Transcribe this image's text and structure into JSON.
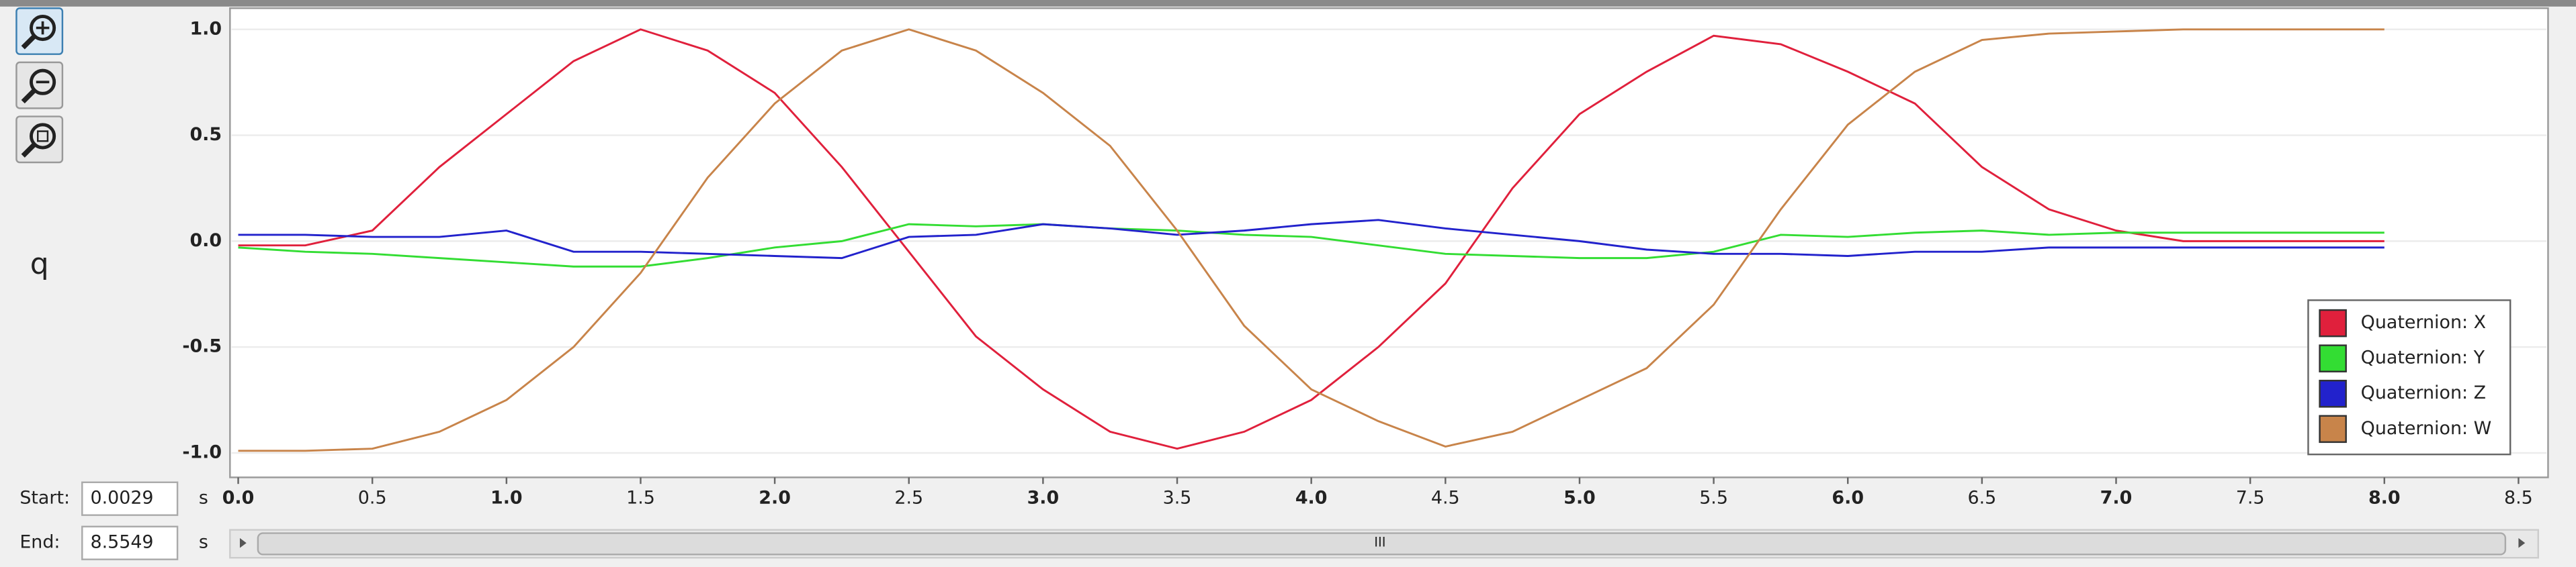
{
  "chart_data": {
    "type": "line",
    "y_label": "q",
    "x": [
      0,
      0.25,
      0.5,
      0.75,
      1,
      1.25,
      1.5,
      1.75,
      2,
      2.25,
      2.5,
      2.75,
      3,
      3.25,
      3.5,
      3.75,
      4,
      4.25,
      4.5,
      4.75,
      5,
      5.25,
      5.5,
      5.75,
      6,
      6.25,
      6.5,
      6.75,
      7,
      7.25,
      7.5,
      7.75,
      8
    ],
    "series": [
      {
        "name": "Quaternion: X",
        "color": "#e0203c",
        "values": [
          -0.02,
          -0.02,
          0.05,
          0.35,
          0.6,
          0.85,
          1.0,
          0.9,
          0.7,
          0.35,
          -0.05,
          -0.45,
          -0.7,
          -0.9,
          -0.98,
          -0.9,
          -0.75,
          -0.5,
          -0.2,
          0.25,
          0.6,
          0.8,
          0.97,
          0.93,
          0.8,
          0.65,
          0.35,
          0.15,
          0.05,
          0.0,
          0.0,
          0.0,
          0.0
        ]
      },
      {
        "name": "Quaternion: Y",
        "color": "#33dd33",
        "values": [
          -0.03,
          -0.05,
          -0.06,
          -0.08,
          -0.1,
          -0.12,
          -0.12,
          -0.08,
          -0.03,
          0.0,
          0.08,
          0.07,
          0.08,
          0.06,
          0.05,
          0.03,
          0.02,
          -0.02,
          -0.06,
          -0.07,
          -0.08,
          -0.08,
          -0.05,
          0.03,
          0.02,
          0.04,
          0.05,
          0.03,
          0.04,
          0.04,
          0.04,
          0.04,
          0.04
        ]
      },
      {
        "name": "Quaternion: Z",
        "color": "#2222cc",
        "values": [
          0.03,
          0.03,
          0.02,
          0.02,
          0.05,
          -0.05,
          -0.05,
          -0.06,
          -0.07,
          -0.08,
          0.02,
          0.03,
          0.08,
          0.06,
          0.03,
          0.05,
          0.08,
          0.1,
          0.06,
          0.03,
          0.0,
          -0.04,
          -0.06,
          -0.06,
          -0.07,
          -0.05,
          -0.05,
          -0.03,
          -0.03,
          -0.03,
          -0.03,
          -0.03,
          -0.03
        ]
      },
      {
        "name": "Quaternion: W",
        "color": "#c8844a",
        "values": [
          -0.99,
          -0.99,
          -0.98,
          -0.9,
          -0.75,
          -0.5,
          -0.15,
          0.3,
          0.65,
          0.9,
          1.0,
          0.9,
          0.7,
          0.45,
          0.05,
          -0.4,
          -0.7,
          -0.85,
          -0.97,
          -0.9,
          -0.75,
          -0.6,
          -0.3,
          0.15,
          0.55,
          0.8,
          0.95,
          0.98,
          0.99,
          1.0,
          1.0,
          1.0,
          1.0
        ]
      }
    ],
    "xlim": [
      0,
      8.5
    ],
    "xticks": [
      {
        "value": 0,
        "label": "0.0"
      },
      0.5,
      {
        "value": 1,
        "label": "1.0"
      },
      1.5,
      {
        "value": 2,
        "label": "2.0"
      },
      2.5,
      {
        "value": 3,
        "label": "3.0"
      },
      3.5,
      {
        "value": 4,
        "label": "4.0"
      },
      4.5,
      {
        "value": 5,
        "label": "5.0"
      },
      5.5,
      {
        "value": 6,
        "label": "6.0"
      },
      6.5,
      {
        "value": 7,
        "label": "7.0"
      },
      7.5,
      {
        "value": 8,
        "label": "8.0"
      },
      8.5
    ],
    "ylim": [
      -1.1,
      1.1
    ],
    "yticks": [
      {
        "value": -1,
        "label": "-1.0"
      },
      -0.5,
      {
        "value": 0,
        "label": "0.0"
      },
      0.5,
      {
        "value": 1,
        "label": "1.0"
      }
    ],
    "grid": true,
    "legend": "lower right"
  },
  "controls": {
    "start_label": "Start:",
    "start_value": "0.0029",
    "start_unit": "s",
    "end_label": "End:",
    "end_value": "8.5549",
    "end_unit": "s",
    "scroll_grip": "III"
  }
}
